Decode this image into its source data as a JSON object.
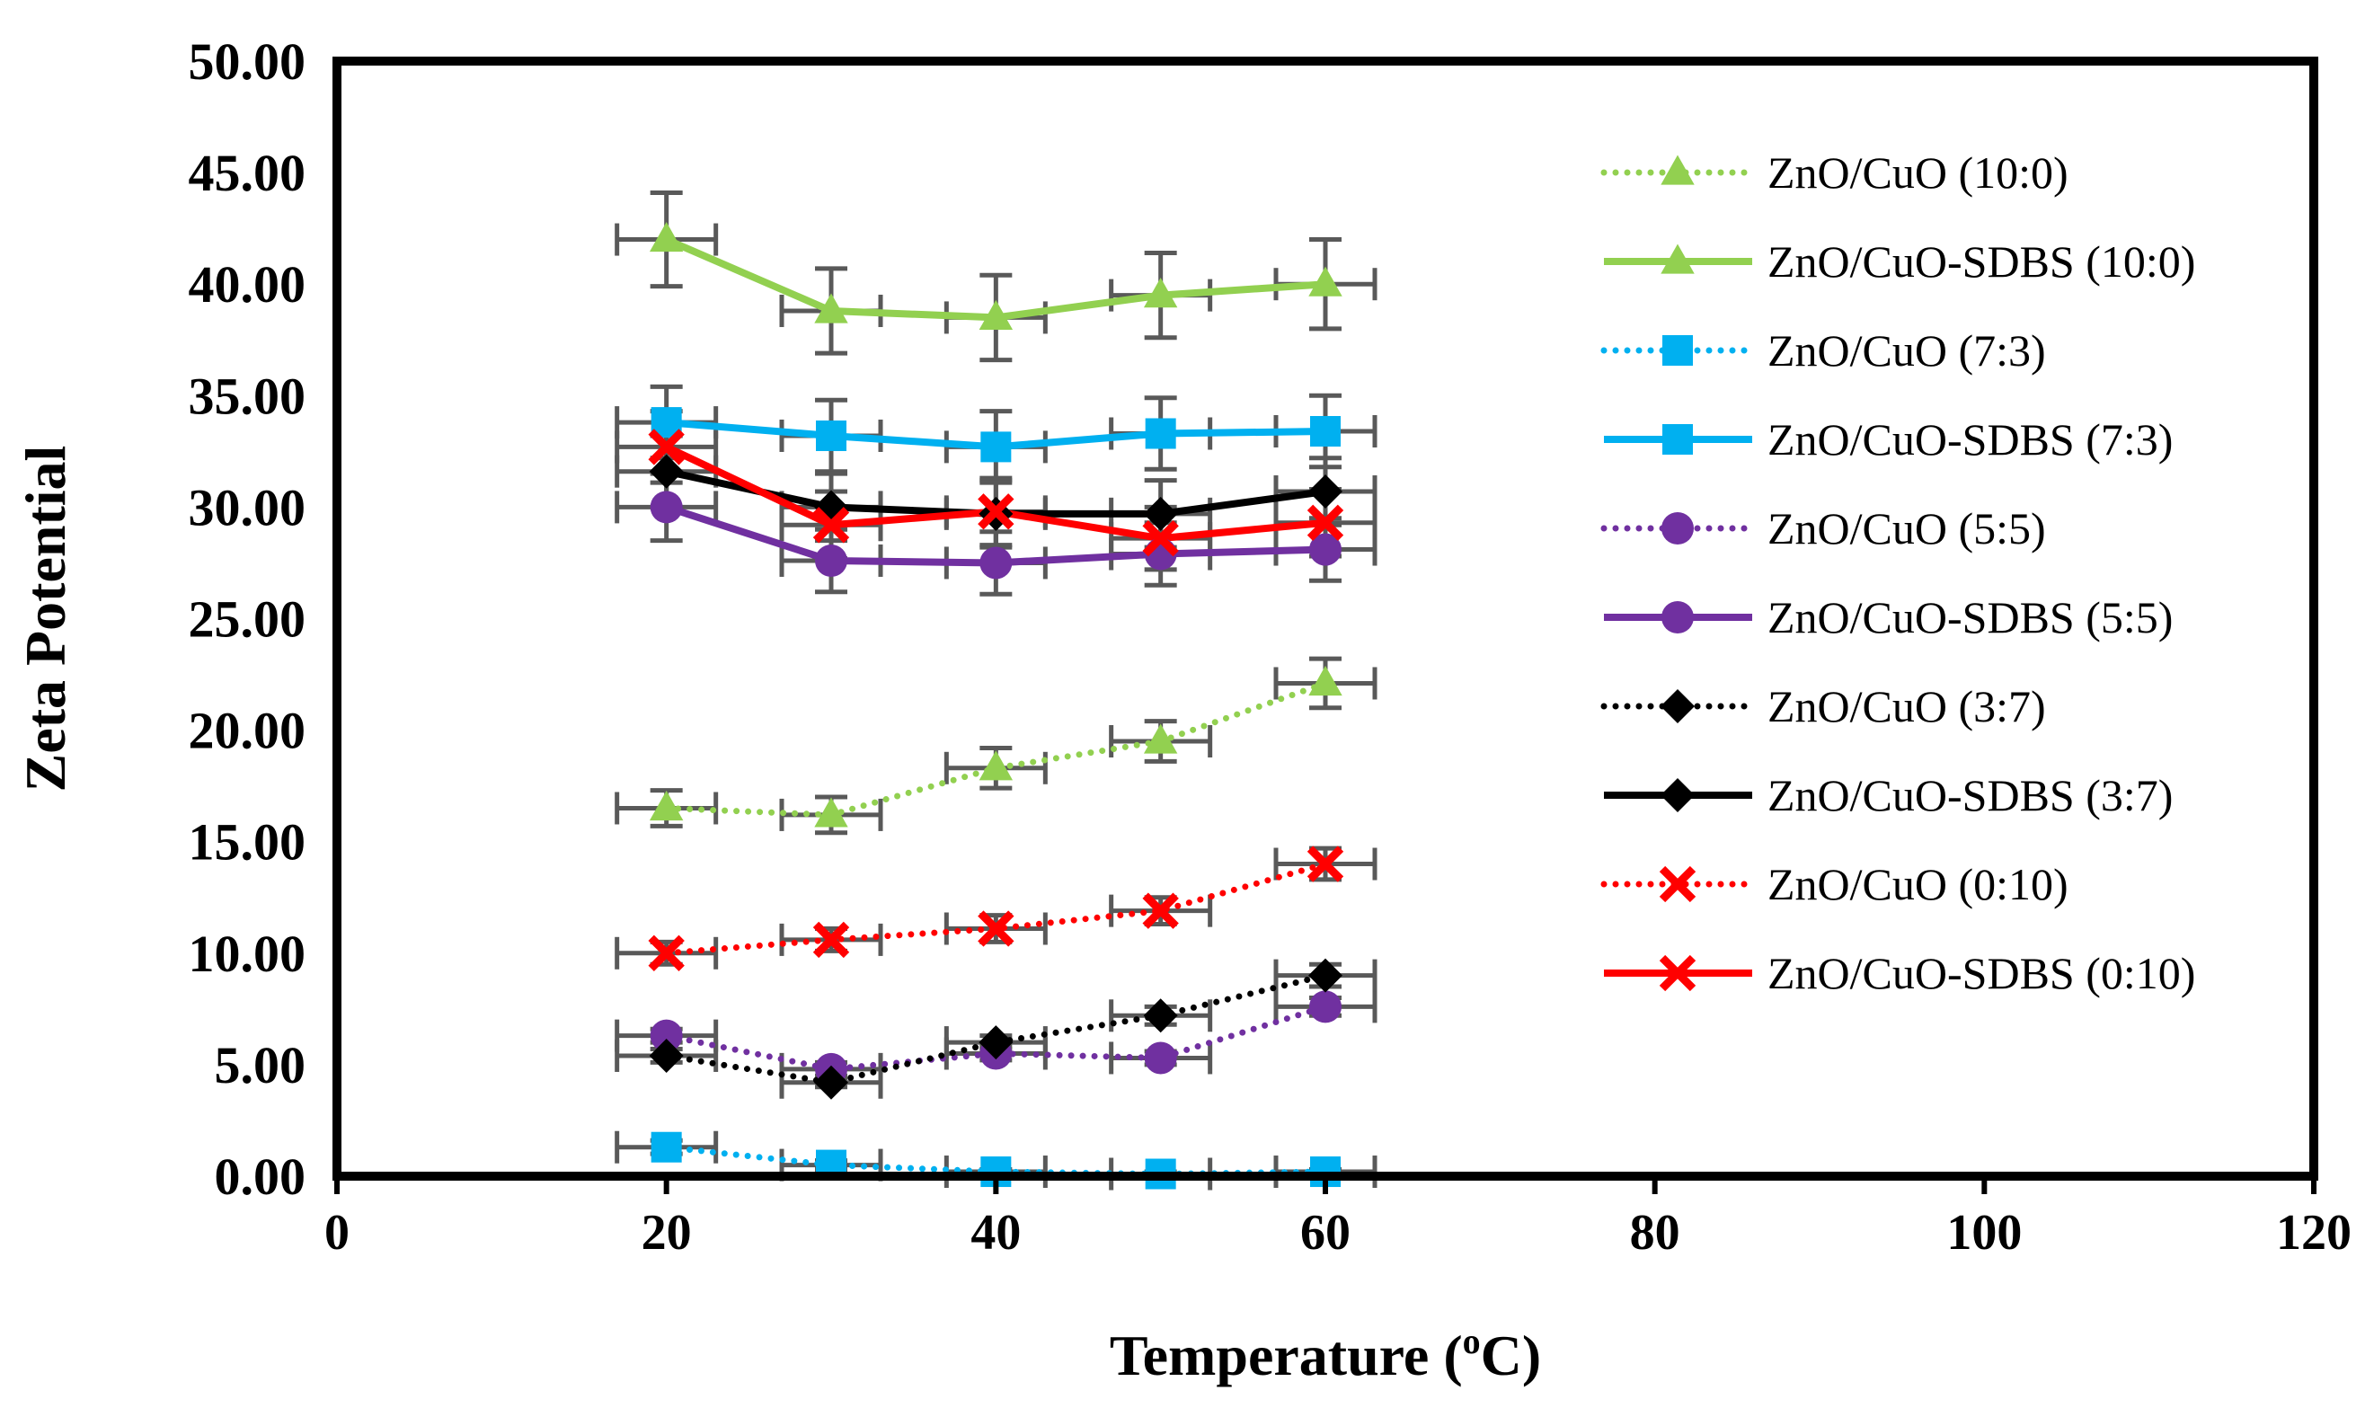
{
  "chart_data": {
    "type": "scatter",
    "title": "",
    "xlabel": "Temperature (",
    "xlabel_sup": "o",
    "xlabel_tail": "C)",
    "ylabel": "Zeta Potential",
    "xlim": [
      0,
      120
    ],
    "ylim": [
      0,
      50
    ],
    "x_ticks": [
      "0",
      "20",
      "40",
      "60",
      "80",
      "100",
      "120"
    ],
    "y_ticks": [
      "0.00",
      "5.00",
      "10.00",
      "15.00",
      "20.00",
      "25.00",
      "30.00",
      "35.00",
      "40.00",
      "45.00",
      "50.00"
    ],
    "x": [
      20,
      30,
      40,
      50,
      60
    ],
    "x_error": 3,
    "grid": false,
    "legend_position": "right",
    "series": [
      {
        "name": "ZnO/CuO (10:0)",
        "color": "#92d050",
        "line": "dotted",
        "marker": "triangle",
        "values": [
          16.5,
          16.2,
          18.3,
          19.5,
          22.1
        ],
        "y_error": [
          0.8,
          0.8,
          0.9,
          0.9,
          1.1
        ]
      },
      {
        "name": "ZnO/CuO-SDBS (10:0)",
        "color": "#92d050",
        "line": "solid",
        "marker": "triangle",
        "values": [
          42.0,
          38.8,
          38.5,
          39.5,
          40.0
        ],
        "y_error": [
          2.1,
          1.9,
          1.9,
          1.9,
          2.0
        ]
      },
      {
        "name": "ZnO/CuO (7:3)",
        "color": "#00b0f0",
        "line": "dotted",
        "marker": "square",
        "values": [
          1.3,
          0.5,
          0.2,
          0.1,
          0.2
        ],
        "y_error": [
          0.3,
          0.2,
          0.1,
          0.1,
          0.1
        ]
      },
      {
        "name": "ZnO/CuO-SDBS (7:3)",
        "color": "#00b0f0",
        "line": "solid",
        "marker": "square",
        "values": [
          33.8,
          33.2,
          32.7,
          33.3,
          33.4
        ],
        "y_error": [
          1.6,
          1.6,
          1.6,
          1.6,
          1.6
        ]
      },
      {
        "name": "ZnO/CuO (5:5)",
        "color": "#7030a0",
        "line": "dotted",
        "marker": "circle",
        "values": [
          6.3,
          4.8,
          5.5,
          5.3,
          7.6
        ],
        "y_error": [
          0.3,
          0.3,
          0.3,
          0.3,
          0.4
        ]
      },
      {
        "name": "ZnO/CuO-SDBS (5:5)",
        "color": "#7030a0",
        "line": "solid",
        "marker": "circle",
        "values": [
          30.0,
          27.6,
          27.5,
          27.9,
          28.1
        ],
        "y_error": [
          1.5,
          1.4,
          1.4,
          1.4,
          1.4
        ]
      },
      {
        "name": "ZnO/CuO (3:7)",
        "color": "#000000",
        "line": "dotted",
        "marker": "diamond",
        "values": [
          5.4,
          4.2,
          6.0,
          7.2,
          9.0
        ],
        "y_error": [
          0.3,
          0.2,
          0.3,
          0.4,
          0.5
        ]
      },
      {
        "name": "ZnO/CuO-SDBS (3:7)",
        "color": "#000000",
        "line": "solid",
        "marker": "diamond",
        "values": [
          31.6,
          30.0,
          29.7,
          29.7,
          30.7
        ],
        "y_error": [
          1.6,
          1.5,
          1.5,
          1.5,
          1.5
        ]
      },
      {
        "name": "ZnO/CuO (0:10)",
        "color": "#ff0000",
        "line": "dotted",
        "marker": "x",
        "values": [
          10.0,
          10.6,
          11.1,
          11.9,
          14.0
        ],
        "y_error": [
          0.5,
          0.5,
          0.6,
          0.6,
          0.7
        ]
      },
      {
        "name": "ZnO/CuO-SDBS (0:10)",
        "color": "#ff0000",
        "line": "solid",
        "marker": "x",
        "values": [
          32.7,
          29.2,
          29.8,
          28.6,
          29.3
        ],
        "y_error": [
          1.6,
          1.5,
          1.5,
          1.4,
          1.5
        ]
      }
    ]
  }
}
